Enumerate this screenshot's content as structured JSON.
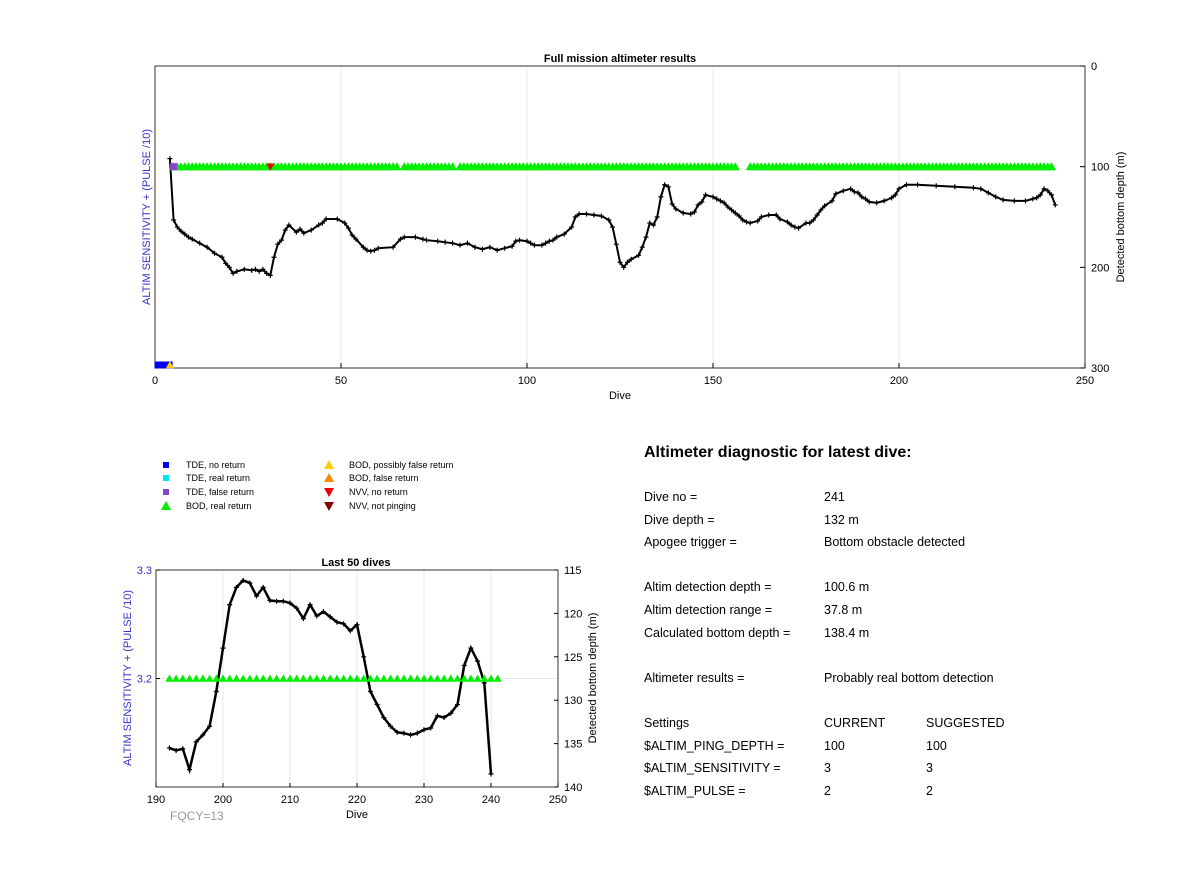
{
  "colors": {
    "green": "#00ee00",
    "line": "#000000",
    "blue_axis": "#3333cc",
    "tde_no_return": "#0000ee",
    "tde_real": "#00e5ee",
    "tde_false": "#8844cc",
    "bod_possibly": "#ffcc00",
    "bod_false": "#ff8800",
    "nvv_no_return": "#ee0000",
    "nvv_not_pinging": "#880000",
    "grid": "#e8e8e8",
    "fqcy": "#999999"
  },
  "chart_data": [
    {
      "type": "line",
      "title": "Full mission altimeter results",
      "xlabel": "Dive",
      "ylabel_left": "ALTIM SENSITIVITY + (PULSE /10)",
      "ylabel_right": "Detected bottom depth (m)",
      "xlim": [
        0,
        250
      ],
      "y_right_lim": [
        0,
        300
      ],
      "y_right_reversed": true,
      "x_ticks": [
        "0",
        "50",
        "100",
        "150",
        "200",
        "250"
      ],
      "y_right_ticks": [
        "0",
        "100",
        "200",
        "300"
      ],
      "grid": true,
      "series": [
        {
          "kind": "line",
          "axis": "right",
          "points": [
            [
              4,
              92
            ],
            [
              5,
              153
            ],
            [
              6,
              160
            ],
            [
              7,
              164
            ],
            [
              8,
              167
            ],
            [
              9,
              170
            ],
            [
              10,
              172
            ],
            [
              12,
              176
            ],
            [
              14,
              180
            ],
            [
              16,
              186
            ],
            [
              18,
              190
            ],
            [
              19,
              196
            ],
            [
              20,
              200
            ],
            [
              21,
              206
            ],
            [
              22,
              204
            ],
            [
              24,
              202
            ],
            [
              26,
              203
            ],
            [
              27,
              202
            ],
            [
              28,
              204
            ],
            [
              29,
              202
            ],
            [
              30,
              206
            ],
            [
              31,
              208
            ],
            [
              32,
              190
            ],
            [
              33,
              177
            ],
            [
              34,
              173
            ],
            [
              35,
              163
            ],
            [
              36,
              158
            ],
            [
              38,
              165
            ],
            [
              39,
              162
            ],
            [
              40,
              166
            ],
            [
              42,
              163
            ],
            [
              44,
              158
            ],
            [
              45,
              156
            ],
            [
              46,
              152
            ],
            [
              49,
              152
            ],
            [
              51,
              156
            ],
            [
              52,
              161
            ],
            [
              53,
              168
            ],
            [
              54,
              172
            ],
            [
              56,
              180
            ],
            [
              57,
              183
            ],
            [
              58,
              184
            ],
            [
              59,
              183
            ],
            [
              60,
              181
            ],
            [
              64,
              180
            ],
            [
              66,
              172
            ],
            [
              67,
              170
            ],
            [
              70,
              170
            ],
            [
              72,
              172
            ],
            [
              73,
              173
            ],
            [
              76,
              174
            ],
            [
              78,
              175
            ],
            [
              80,
              176
            ],
            [
              82,
              178
            ],
            [
              84,
              176
            ],
            [
              86,
              180
            ],
            [
              88,
              182
            ],
            [
              90,
              180
            ],
            [
              92,
              183
            ],
            [
              94,
              181
            ],
            [
              96,
              179
            ],
            [
              97,
              174
            ],
            [
              98,
              173
            ],
            [
              100,
              174
            ],
            [
              101,
              176
            ],
            [
              102,
              178
            ],
            [
              104,
              178
            ],
            [
              105,
              176
            ],
            [
              106,
              174
            ],
            [
              107,
              173
            ],
            [
              108,
              170
            ],
            [
              110,
              167
            ],
            [
              112,
              160
            ],
            [
              113,
              150
            ],
            [
              114,
              147
            ],
            [
              116,
              147
            ],
            [
              118,
              148
            ],
            [
              120,
              149
            ],
            [
              122,
              153
            ],
            [
              123,
              160
            ],
            [
              124,
              177
            ],
            [
              125,
              195
            ],
            [
              126,
              200
            ],
            [
              127,
              195
            ],
            [
              128,
              192
            ],
            [
              130,
              188
            ],
            [
              131,
              180
            ],
            [
              132,
              170
            ],
            [
              133,
              156
            ],
            [
              134,
              158
            ],
            [
              135,
              150
            ],
            [
              136,
              130
            ],
            [
              137,
              118
            ],
            [
              138,
              120
            ],
            [
              139,
              137
            ],
            [
              140,
              142
            ],
            [
              142,
              146
            ],
            [
              144,
              147
            ],
            [
              145,
              145
            ],
            [
              146,
              138
            ],
            [
              147,
              135
            ],
            [
              148,
              128
            ],
            [
              150,
              130
            ],
            [
              151,
              132
            ],
            [
              152,
              134
            ],
            [
              153,
              136
            ],
            [
              154,
              140
            ],
            [
              155,
              143
            ],
            [
              156,
              146
            ],
            [
              157,
              149
            ],
            [
              158,
              153
            ],
            [
              159,
              155
            ],
            [
              160,
              156
            ],
            [
              162,
              154
            ],
            [
              163,
              150
            ],
            [
              165,
              148
            ],
            [
              167,
              148
            ],
            [
              168,
              152
            ],
            [
              170,
              155
            ],
            [
              171,
              158
            ],
            [
              172,
              160
            ],
            [
              173,
              161
            ],
            [
              175,
              156
            ],
            [
              176,
              156
            ],
            [
              177,
              153
            ],
            [
              178,
              148
            ],
            [
              179,
              143
            ],
            [
              180,
              139
            ],
            [
              182,
              134
            ],
            [
              183,
              127
            ],
            [
              185,
              124
            ],
            [
              187,
              122
            ],
            [
              188,
              125
            ],
            [
              189,
              126
            ],
            [
              190,
              130
            ],
            [
              191,
              132
            ],
            [
              192,
              135
            ],
            [
              194,
              136
            ],
            [
              196,
              134
            ],
            [
              198,
              131
            ],
            [
              199,
              128
            ],
            [
              200,
              122
            ],
            [
              202,
              118
            ],
            [
              205,
              118
            ],
            [
              210,
              119
            ],
            [
              215,
              120
            ],
            [
              220,
              121
            ],
            [
              222,
              122
            ],
            [
              224,
              126
            ],
            [
              226,
              130
            ],
            [
              228,
              133
            ],
            [
              231,
              134
            ],
            [
              234,
              134
            ],
            [
              236,
              132
            ],
            [
              237,
              131
            ],
            [
              238,
              128
            ],
            [
              239,
              122
            ],
            [
              240,
              124
            ],
            [
              241,
              128
            ],
            [
              242,
              138
            ]
          ]
        },
        {
          "kind": "markers",
          "name": "BOD, real return",
          "marker": "triangle-up",
          "ranges": [
            [
              5,
              65
            ],
            [
              67,
              80
            ],
            [
              82,
              156
            ],
            [
              160,
              241
            ]
          ],
          "y_right": 100
        },
        {
          "kind": "markers",
          "name": "TDE, false return",
          "marker": "square",
          "points": [
            [
              5,
              100
            ]
          ]
        },
        {
          "kind": "markers",
          "name": "NVV, no return",
          "marker": "triangle-down",
          "points": [
            [
              31,
              100
            ]
          ]
        },
        {
          "kind": "markers",
          "name": "TDE, no return",
          "marker": "square",
          "points": [
            [
              0,
              300
            ],
            [
              1,
              300
            ],
            [
              2,
              300
            ],
            [
              3,
              300
            ]
          ]
        },
        {
          "kind": "markers",
          "name": "BOD, possibly false return",
          "marker": "triangle-up",
          "points": [
            [
              4,
              300
            ]
          ]
        }
      ]
    },
    {
      "type": "line",
      "title": "Last 50 dives",
      "xlabel": "Dive",
      "ylabel_left": "ALTIM SENSITIVITY + (PULSE /10)",
      "ylabel_right": "Detected bottom depth (m)",
      "xlim": [
        190,
        250
      ],
      "y_left_lim": [
        3.1,
        3.3
      ],
      "y_right_lim": [
        115,
        140
      ],
      "y_right_reversed": true,
      "x_ticks": [
        "190",
        "200",
        "210",
        "220",
        "230",
        "240",
        "250"
      ],
      "y_left_ticks": [
        "3.2",
        "3.3"
      ],
      "y_right_ticks": [
        "115",
        "120",
        "125",
        "130",
        "135",
        "140"
      ],
      "series": [
        {
          "kind": "line",
          "axis": "right",
          "points": [
            [
              192,
              135.5
            ],
            [
              193,
              135.8
            ],
            [
              194,
              135.6
            ],
            [
              195,
              138
            ],
            [
              196,
              134.8
            ],
            [
              197,
              134
            ],
            [
              198,
              133
            ],
            [
              199,
              129
            ],
            [
              200,
              124
            ],
            [
              201,
              119
            ],
            [
              202,
              117
            ],
            [
              203,
              116.2
            ],
            [
              204,
              116.5
            ],
            [
              205,
              118
            ],
            [
              206,
              117
            ],
            [
              207,
              118.5
            ],
            [
              208,
              118.6
            ],
            [
              209,
              118.6
            ],
            [
              210,
              118.8
            ],
            [
              211,
              119.4
            ],
            [
              212,
              120.6
            ],
            [
              213,
              119
            ],
            [
              214,
              120.3
            ],
            [
              215,
              119.8
            ],
            [
              216,
              120.4
            ],
            [
              217,
              121
            ],
            [
              218,
              121.2
            ],
            [
              219,
              122
            ],
            [
              220,
              121.3
            ],
            [
              221,
              125
            ],
            [
              222,
              129
            ],
            [
              223,
              130.5
            ],
            [
              224,
              132
            ],
            [
              225,
              133
            ],
            [
              226,
              133.7
            ],
            [
              227,
              133.8
            ],
            [
              228,
              134
            ],
            [
              229,
              133.8
            ],
            [
              230,
              133.4
            ],
            [
              231,
              133.2
            ],
            [
              232,
              131.8
            ],
            [
              233,
              132
            ],
            [
              234,
              131.5
            ],
            [
              235,
              130.5
            ],
            [
              236,
              126
            ],
            [
              237,
              124
            ],
            [
              238,
              125.5
            ],
            [
              239,
              128
            ],
            [
              240,
              138.5
            ]
          ]
        },
        {
          "kind": "markers",
          "name": "BOD, real return",
          "marker": "triangle-up",
          "range": [
            192,
            241
          ],
          "y_left": 3.2
        }
      ]
    }
  ],
  "legend": [
    {
      "label": "TDE, no return",
      "marker": "square",
      "color": "#0000ee"
    },
    {
      "label": "TDE, real return",
      "marker": "square",
      "color": "#00e5ee"
    },
    {
      "label": "TDE, false return",
      "marker": "square",
      "color": "#8844cc"
    },
    {
      "label": "BOD, real return",
      "marker": "triangle-up",
      "color": "#00ee00"
    },
    {
      "label": "BOD, possibly false return",
      "marker": "triangle-up",
      "color": "#ffcc00"
    },
    {
      "label": "BOD, false return",
      "marker": "triangle-up",
      "color": "#ff8800"
    },
    {
      "label": "NVV, no return",
      "marker": "triangle-down",
      "color": "#ee0000"
    },
    {
      "label": "NVV, not pinging",
      "marker": "triangle-down",
      "color": "#880000"
    }
  ],
  "fqcy_label": "FQCY=13",
  "diagnostic": {
    "title": "Altimeter diagnostic for latest dive:",
    "dive_no_label": "Dive no =",
    "dive_no": "241",
    "dive_depth_label": "Dive depth =",
    "dive_depth": "132 m",
    "apogee_label": "Apogee trigger =",
    "apogee": "Bottom obstacle detected",
    "detect_depth_label": "Altim detection depth =",
    "detect_depth": "100.6 m",
    "detect_range_label": "Altim detection range =",
    "detect_range": "37.8 m",
    "calc_depth_label": "Calculated bottom depth =",
    "calc_depth": "138.4 m",
    "results_label": "Altimeter results =",
    "results": "Probably real bottom detection",
    "settings_label": "Settings",
    "current_label": "CURRENT",
    "suggested_label": "SUGGESTED",
    "ping_label": "$ALTIM_PING_DEPTH =",
    "ping_current": "100",
    "ping_suggested": "100",
    "sens_label": "$ALTIM_SENSITIVITY =",
    "sens_current": "3",
    "sens_suggested": "3",
    "pulse_label": "$ALTIM_PULSE =",
    "pulse_current": "2",
    "pulse_suggested": "2"
  }
}
